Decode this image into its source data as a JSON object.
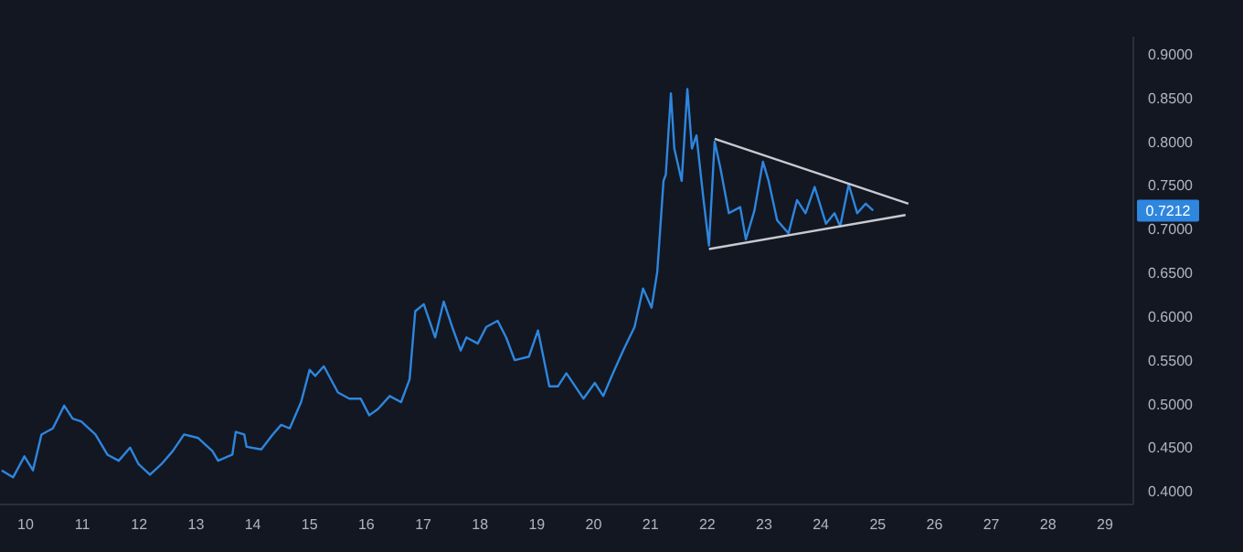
{
  "chart_data": {
    "type": "line",
    "x": [
      9.58,
      9.78,
      9.98,
      10.13,
      10.28,
      10.48,
      10.68,
      10.83,
      10.98,
      11.23,
      11.44,
      11.64,
      11.84,
      11.99,
      12.19,
      12.39,
      12.59,
      12.79,
      13.04,
      13.29,
      13.39,
      13.64,
      13.7,
      13.85,
      13.89,
      14.15,
      14.35,
      14.5,
      14.65,
      14.85,
      15.0,
      15.1,
      15.25,
      15.5,
      15.7,
      15.9,
      16.05,
      16.2,
      16.41,
      16.61,
      16.76,
      16.86,
      17.01,
      17.21,
      17.36,
      17.51,
      17.66,
      17.76,
      17.96,
      18.11,
      18.31,
      18.46,
      18.61,
      18.86,
      19.02,
      19.22,
      19.37,
      19.52,
      19.82,
      20.02,
      20.17,
      20.32,
      20.52,
      20.72,
      20.87,
      21.02,
      21.12,
      21.23,
      21.27,
      21.36,
      21.42,
      21.55,
      21.65,
      21.73,
      21.81,
      21.93,
      22.03,
      22.13,
      22.23,
      22.38,
      22.58,
      22.68,
      22.83,
      22.98,
      23.08,
      23.23,
      23.43,
      23.58,
      23.73,
      23.89,
      24.09,
      24.24,
      24.34,
      24.49,
      24.64,
      24.79,
      24.92
    ],
    "series": [
      {
        "color": "#2e86de",
        "values": [
          0.424,
          0.416,
          0.44,
          0.424,
          0.465,
          0.472,
          0.498,
          0.483,
          0.48,
          0.465,
          0.442,
          0.435,
          0.45,
          0.431,
          0.419,
          0.431,
          0.446,
          0.465,
          0.461,
          0.446,
          0.435,
          0.442,
          0.468,
          0.465,
          0.451,
          0.448,
          0.465,
          0.476,
          0.472,
          0.502,
          0.539,
          0.532,
          0.543,
          0.513,
          0.506,
          0.506,
          0.487,
          0.494,
          0.509,
          0.502,
          0.528,
          0.606,
          0.614,
          0.576,
          0.617,
          0.588,
          0.561,
          0.576,
          0.569,
          0.588,
          0.595,
          0.576,
          0.55,
          0.554,
          0.584,
          0.52,
          0.52,
          0.535,
          0.506,
          0.524,
          0.509,
          0.532,
          0.561,
          0.588,
          0.632,
          0.61,
          0.651,
          0.755,
          0.762,
          0.855,
          0.792,
          0.755,
          0.86,
          0.792,
          0.807,
          0.736,
          0.681,
          0.8,
          0.77,
          0.718,
          0.725,
          0.688,
          0.721,
          0.777,
          0.755,
          0.71,
          0.695,
          0.733,
          0.718,
          0.748,
          0.706,
          0.718,
          0.703,
          0.751,
          0.718,
          0.729,
          0.721
        ]
      },
      {
        "type": "line",
        "color": "#c8cad0",
        "x": [
          22.13,
          25.54
        ],
        "values": [
          0.803,
          0.729
        ]
      },
      {
        "type": "line",
        "color": "#c8cad0",
        "x": [
          22.03,
          25.49
        ],
        "values": [
          0.677,
          0.716
        ]
      }
    ],
    "xlim": [
      9.55,
      29.5
    ],
    "xticks": [
      10,
      11,
      12,
      13,
      14,
      15,
      16,
      17,
      18,
      19,
      20,
      21,
      22,
      23,
      24,
      25,
      26,
      27,
      28,
      29
    ],
    "ylim": [
      0.385,
      0.92
    ],
    "yticks": [
      {
        "value": 0.4,
        "label": "0.4000"
      },
      {
        "value": 0.45,
        "label": "0.4500"
      },
      {
        "value": 0.5,
        "label": "0.5000"
      },
      {
        "value": 0.55,
        "label": "0.5500"
      },
      {
        "value": 0.6,
        "label": "0.6000"
      },
      {
        "value": 0.65,
        "label": "0.6500"
      },
      {
        "value": 0.7,
        "label": "0.7000"
      },
      {
        "value": 0.75,
        "label": "0.7500"
      },
      {
        "value": 0.8,
        "label": "0.8000"
      },
      {
        "value": 0.85,
        "label": "0.8500"
      },
      {
        "value": 0.9,
        "label": "0.9000"
      }
    ],
    "annotations": [
      "0.7212"
    ],
    "grid": false,
    "marker": "none",
    "line_style": "solid"
  }
}
